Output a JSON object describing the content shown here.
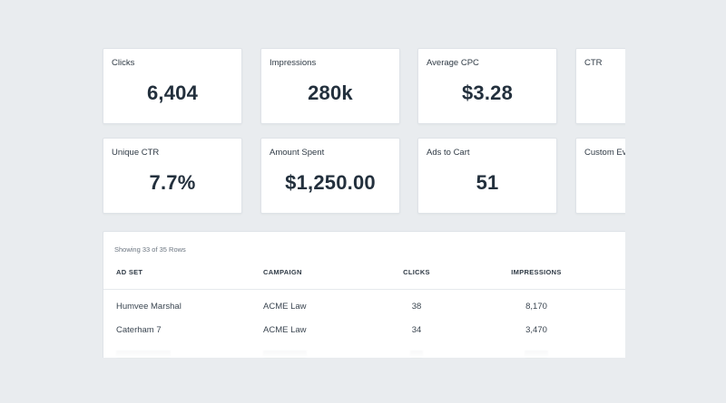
{
  "metrics": [
    {
      "label": "Clicks",
      "value": "6,404"
    },
    {
      "label": "Impressions",
      "value": "280k"
    },
    {
      "label": "Average CPC",
      "value": "$3.28"
    },
    {
      "label": "CTR",
      "value": ""
    },
    {
      "label": "Unique CTR",
      "value": "7.7%"
    },
    {
      "label": "Amount Spent",
      "value": "$1,250.00"
    },
    {
      "label": "Ads to Cart",
      "value": "51"
    },
    {
      "label": "Custom Ev",
      "value": ""
    }
  ],
  "table": {
    "caption": "Showing 33 of 35 Rows",
    "headers": {
      "adset": "AD SET",
      "campaign": "CAMPAIGN",
      "clicks": "CLICKS",
      "impressions": "IMPRESSIONS"
    },
    "rows": [
      {
        "adset": "Humvee Marshal",
        "campaign": "ACME Law",
        "clicks": "38",
        "impressions": "8,170"
      },
      {
        "adset": "Caterham 7",
        "campaign": "ACME Law",
        "clicks": "34",
        "impressions": "3,470"
      }
    ]
  }
}
